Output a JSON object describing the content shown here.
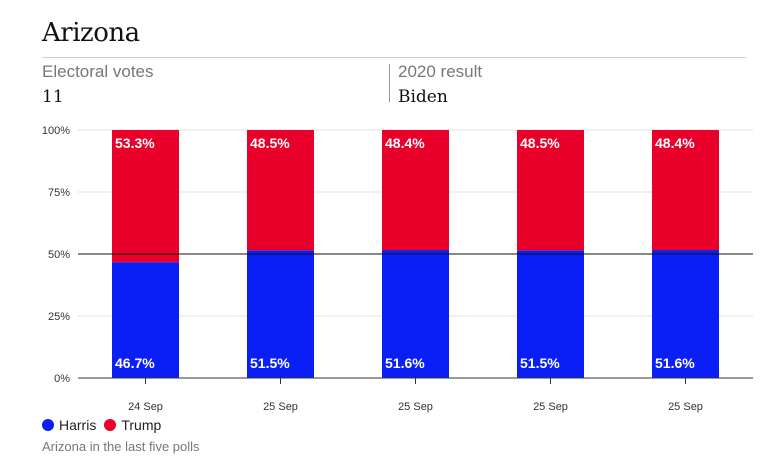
{
  "header": {
    "title": "Arizona",
    "electoral_label": "Electoral votes",
    "electoral_value": "11",
    "result_label": "2020 result",
    "result_value": "Biden"
  },
  "colors": {
    "harris": "#0a1ff5",
    "trump": "#e8002b",
    "grid": "#e2e2e2",
    "midline": "#111111"
  },
  "legend": {
    "harris": "Harris",
    "trump": "Trump"
  },
  "footnote": "Arizona in the last five polls",
  "chart_data": {
    "type": "bar",
    "stacked": true,
    "categories": [
      "24 Sep",
      "25 Sep",
      "25 Sep",
      "25 Sep",
      "25 Sep"
    ],
    "series": [
      {
        "name": "Harris",
        "values": [
          46.7,
          51.5,
          51.6,
          51.5,
          51.6
        ],
        "labels": [
          "46.7%",
          "51.5%",
          "51.6%",
          "51.5%",
          "51.6%"
        ]
      },
      {
        "name": "Trump",
        "values": [
          53.3,
          48.5,
          48.4,
          48.5,
          48.4
        ],
        "labels": [
          "53.3%",
          "48.5%",
          "48.4%",
          "48.5%",
          "48.4%"
        ]
      }
    ],
    "ylim": [
      0,
      100
    ],
    "yticks": [
      0,
      25,
      50,
      75,
      100
    ],
    "ytick_labels": [
      "0%",
      "25%",
      "50%",
      "75%",
      "100%"
    ],
    "reference_line": 50,
    "grid": true,
    "legend_position": "bottom-left"
  }
}
